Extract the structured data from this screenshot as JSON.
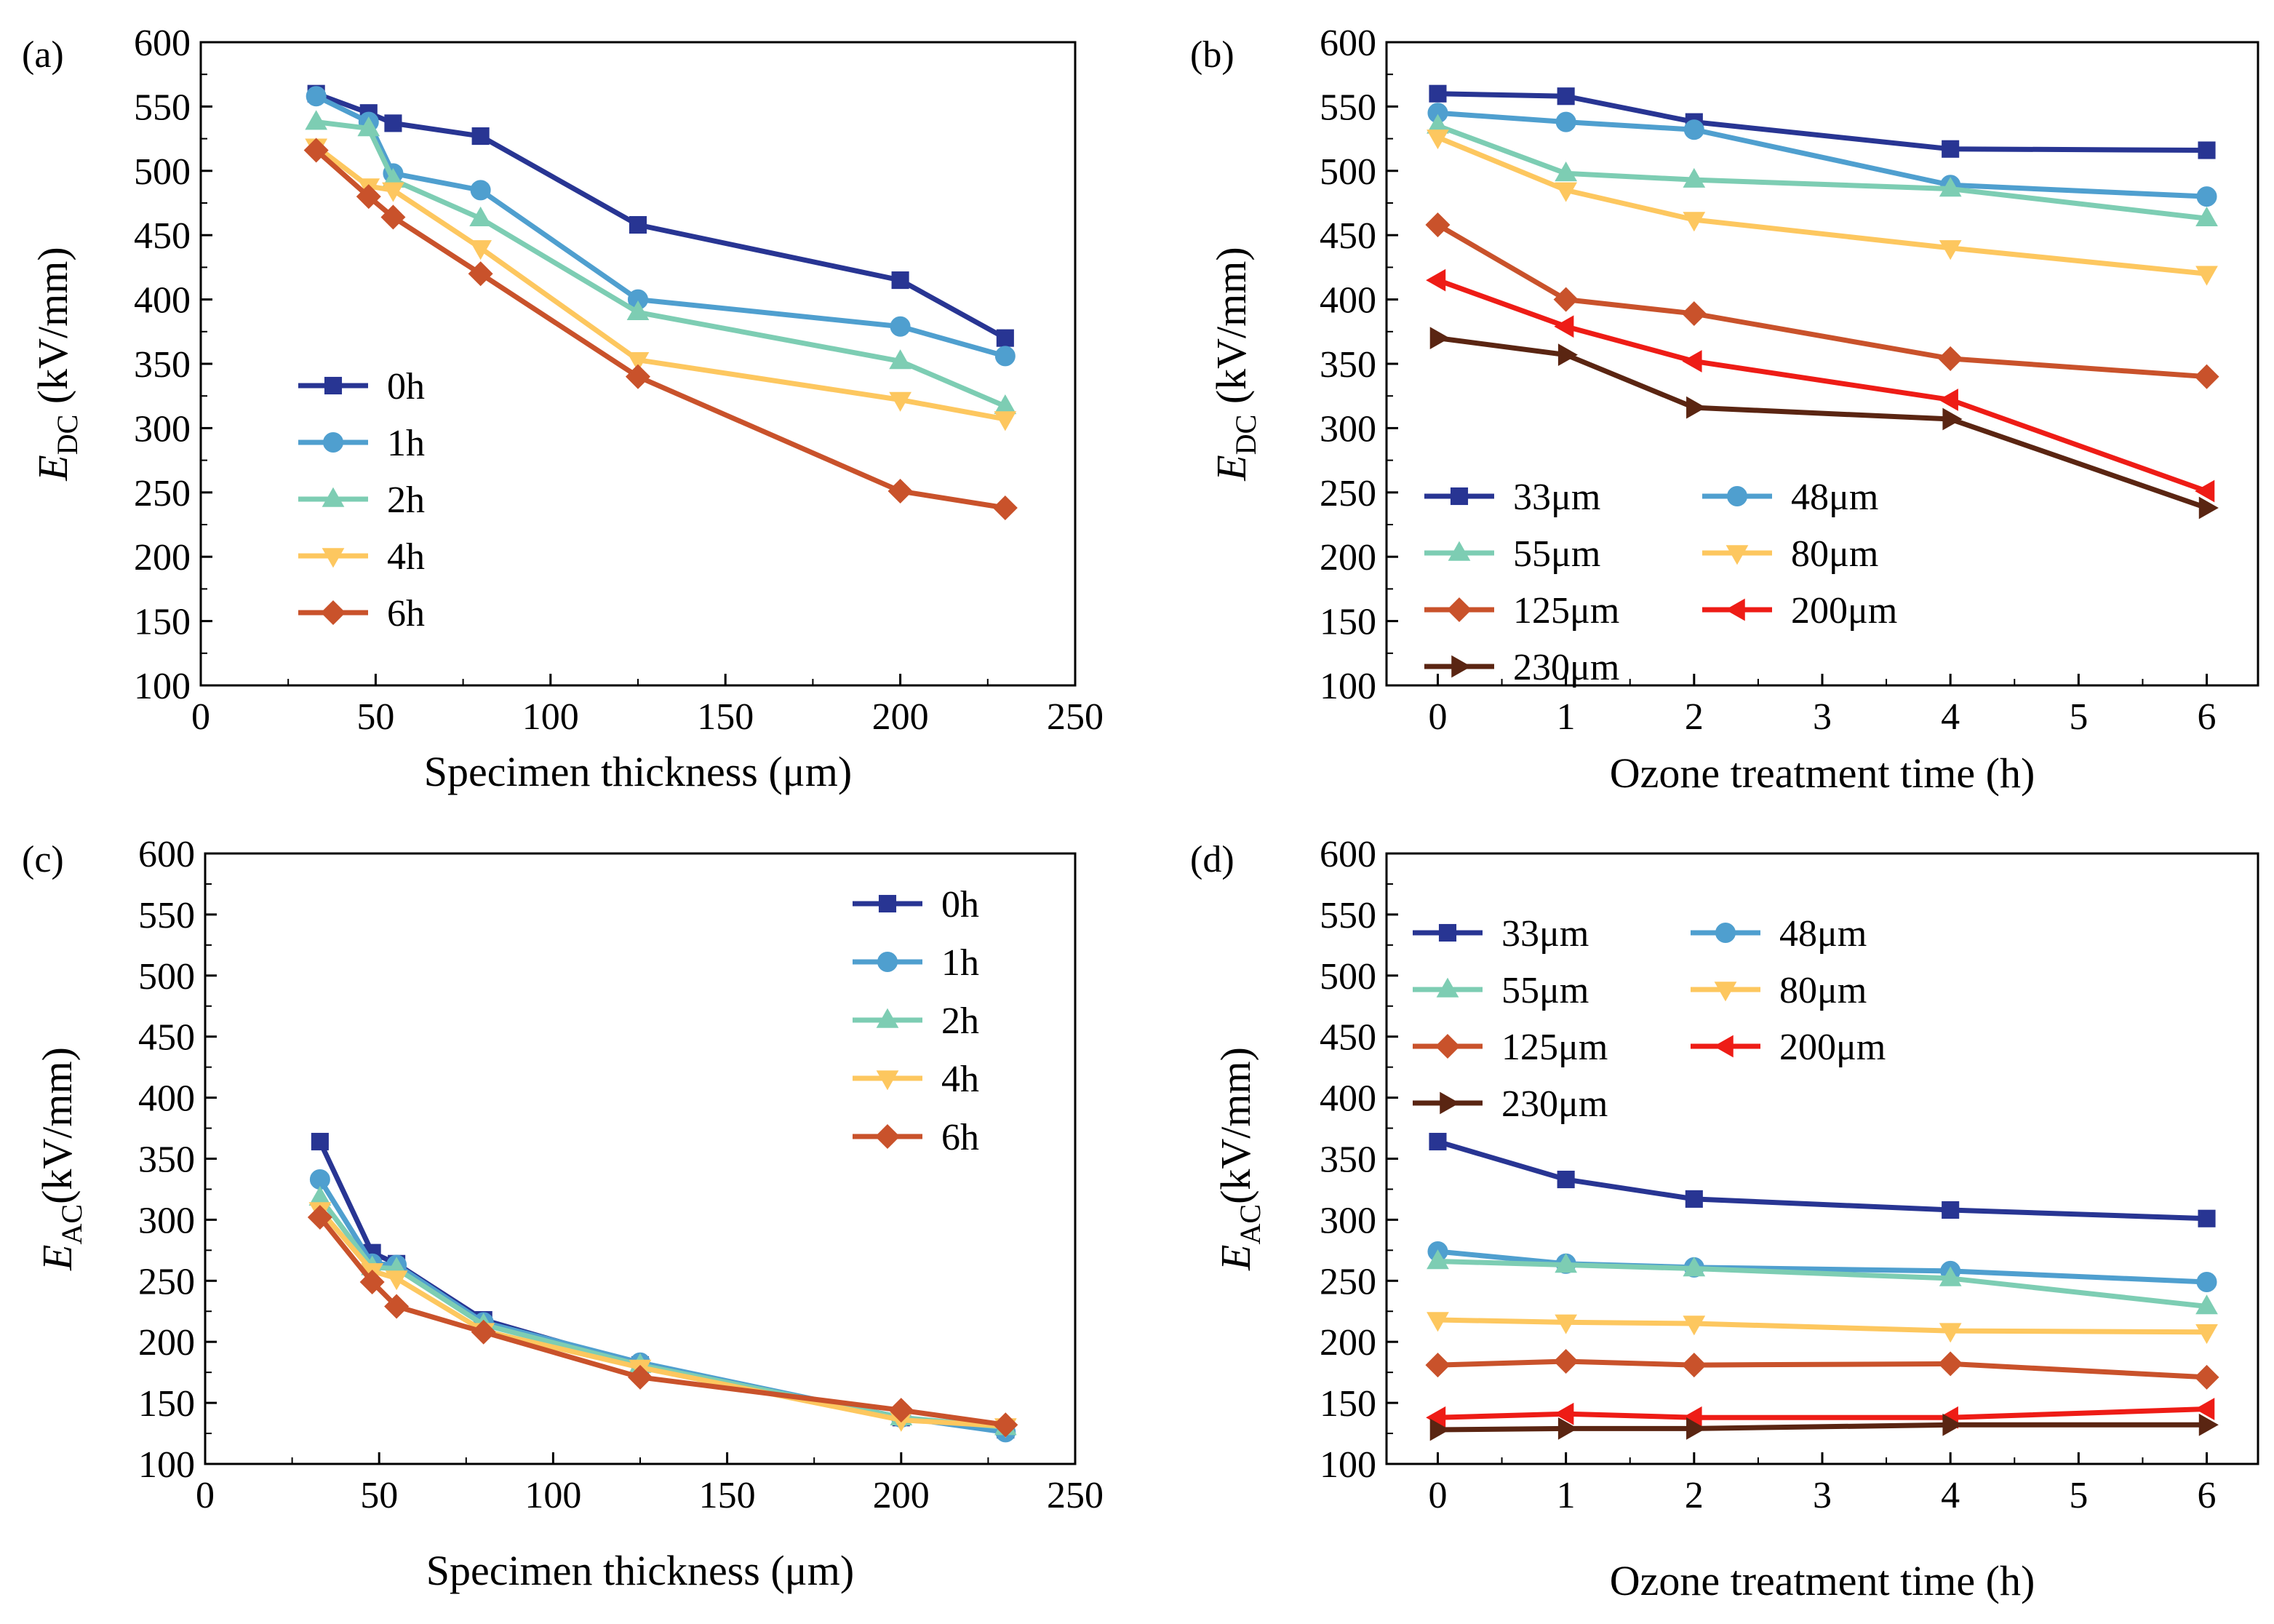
{
  "chart_data": [
    {
      "panel": "(a)",
      "type": "line",
      "xlabel": "Specimen thickness (μm)",
      "ylabel_main": "E",
      "ylabel_sub": "DC",
      "ylabel_rest": " (kV/mm)",
      "xlim": [
        0,
        250
      ],
      "xticks": [
        0,
        50,
        100,
        150,
        200,
        250
      ],
      "ylim": [
        100,
        600
      ],
      "yticks": [
        100,
        150,
        200,
        250,
        300,
        350,
        400,
        450,
        500,
        550,
        600
      ],
      "legend_position": "lower-left",
      "x": [
        33,
        48,
        55,
        80,
        125,
        200,
        230
      ],
      "series": [
        {
          "name": "0h",
          "color": "#283593",
          "marker": "square",
          "values": [
            560,
            545,
            537,
            527,
            458,
            415,
            370
          ]
        },
        {
          "name": "1h",
          "color": "#4f9fcf",
          "marker": "circle",
          "values": [
            558,
            538,
            498,
            485,
            400,
            379,
            356
          ]
        },
        {
          "name": "2h",
          "color": "#7dcdb3",
          "marker": "triangle-up",
          "values": [
            538,
            533,
            493,
            463,
            390,
            352,
            317
          ]
        },
        {
          "name": "4h",
          "color": "#fdc75f",
          "marker": "triangle-down",
          "values": [
            519,
            488,
            485,
            440,
            353,
            322,
            307
          ]
        },
        {
          "name": "6h",
          "color": "#c9522b",
          "marker": "diamond",
          "values": [
            516,
            480,
            464,
            420,
            340,
            251,
            238
          ]
        }
      ]
    },
    {
      "panel": "(b)",
      "type": "line",
      "xlabel": "Ozone treatment time (h)",
      "ylabel_main": "E",
      "ylabel_sub": "DC",
      "ylabel_rest": " (kV/mm)",
      "xlim": [
        -0.4,
        6.4
      ],
      "xticks": [
        0,
        1,
        2,
        3,
        4,
        5,
        6
      ],
      "ylim": [
        100,
        600
      ],
      "yticks": [
        100,
        150,
        200,
        250,
        300,
        350,
        400,
        450,
        500,
        550,
        600
      ],
      "legend_position": "lower-left",
      "x": [
        0,
        1,
        2,
        4,
        6
      ],
      "series": [
        {
          "name": "33μm",
          "color": "#283593",
          "marker": "square",
          "values": [
            560,
            558,
            538,
            517,
            516
          ]
        },
        {
          "name": "48μm",
          "color": "#4f9fcf",
          "marker": "circle",
          "values": [
            545,
            538,
            532,
            489,
            480
          ]
        },
        {
          "name": "55μm",
          "color": "#7dcdb3",
          "marker": "triangle-up",
          "values": [
            535,
            498,
            493,
            486,
            463
          ]
        },
        {
          "name": "80μm",
          "color": "#fdc75f",
          "marker": "triangle-down",
          "values": [
            526,
            485,
            462,
            440,
            420
          ]
        },
        {
          "name": "125μm",
          "color": "#c9522b",
          "marker": "diamond",
          "values": [
            458,
            400,
            389,
            354,
            340
          ]
        },
        {
          "name": "200μm",
          "color": "#ee1c16",
          "marker": "triangle-left",
          "values": [
            415,
            379,
            352,
            322,
            251
          ]
        },
        {
          "name": "230μm",
          "color": "#5a2512",
          "marker": "triangle-right",
          "values": [
            370,
            357,
            316,
            307,
            238
          ]
        }
      ]
    },
    {
      "panel": "(c)",
      "type": "line",
      "xlabel": "Specimen thickness (μm)",
      "ylabel_main": "E",
      "ylabel_sub": "AC",
      "ylabel_rest": "(kV/mm)",
      "xlim": [
        0,
        250
      ],
      "xticks": [
        0,
        50,
        100,
        150,
        200,
        250
      ],
      "ylim": [
        100,
        600
      ],
      "yticks": [
        100,
        150,
        200,
        250,
        300,
        350,
        400,
        450,
        500,
        550,
        600
      ],
      "legend_position": "top-right",
      "x": [
        33,
        48,
        55,
        80,
        125,
        200,
        230
      ],
      "series": [
        {
          "name": "0h",
          "color": "#283593",
          "marker": "square",
          "values": [
            364,
            273,
            264,
            218,
            181,
            138,
            128
          ]
        },
        {
          "name": "1h",
          "color": "#4f9fcf",
          "marker": "circle",
          "values": [
            333,
            264,
            263,
            216,
            183,
            138,
            126
          ]
        },
        {
          "name": "2h",
          "color": "#7dcdb3",
          "marker": "triangle-up",
          "values": [
            318,
            261,
            260,
            214,
            181,
            138,
            130
          ]
        },
        {
          "name": "4h",
          "color": "#fdc75f",
          "marker": "triangle-down",
          "values": [
            308,
            258,
            252,
            209,
            179,
            136,
            131
          ]
        },
        {
          "name": "6h",
          "color": "#c9522b",
          "marker": "diamond",
          "values": [
            302,
            249,
            229,
            208,
            171,
            144,
            132
          ]
        }
      ]
    },
    {
      "panel": "(d)",
      "type": "line",
      "xlabel": "Ozone treatment time (h)",
      "ylabel_main": "E",
      "ylabel_sub": "AC",
      "ylabel_rest": "(kV/mm)",
      "xlim": [
        -0.4,
        6.4
      ],
      "xticks": [
        0,
        1,
        2,
        3,
        4,
        5,
        6
      ],
      "ylim": [
        100,
        600
      ],
      "yticks": [
        100,
        150,
        200,
        250,
        300,
        350,
        400,
        450,
        500,
        550,
        600
      ],
      "legend_position": "top-left",
      "x": [
        0,
        1,
        2,
        4,
        6
      ],
      "series": [
        {
          "name": "33μm",
          "color": "#283593",
          "marker": "square",
          "values": [
            364,
            333,
            317,
            308,
            301
          ]
        },
        {
          "name": "48μm",
          "color": "#4f9fcf",
          "marker": "circle",
          "values": [
            274,
            264,
            261,
            258,
            249
          ]
        },
        {
          "name": "55μm",
          "color": "#7dcdb3",
          "marker": "triangle-up",
          "values": [
            266,
            263,
            260,
            252,
            229
          ]
        },
        {
          "name": "80μm",
          "color": "#fdc75f",
          "marker": "triangle-down",
          "values": [
            218,
            216,
            215,
            209,
            208
          ]
        },
        {
          "name": "125μm",
          "color": "#c9522b",
          "marker": "diamond",
          "values": [
            181,
            184,
            181,
            182,
            171
          ]
        },
        {
          "name": "200μm",
          "color": "#ee1c16",
          "marker": "triangle-left",
          "values": [
            138,
            141,
            138,
            138,
            145
          ]
        },
        {
          "name": "230μm",
          "color": "#5a2512",
          "marker": "triangle-right",
          "values": [
            128,
            129,
            129,
            132,
            132
          ]
        }
      ]
    }
  ]
}
